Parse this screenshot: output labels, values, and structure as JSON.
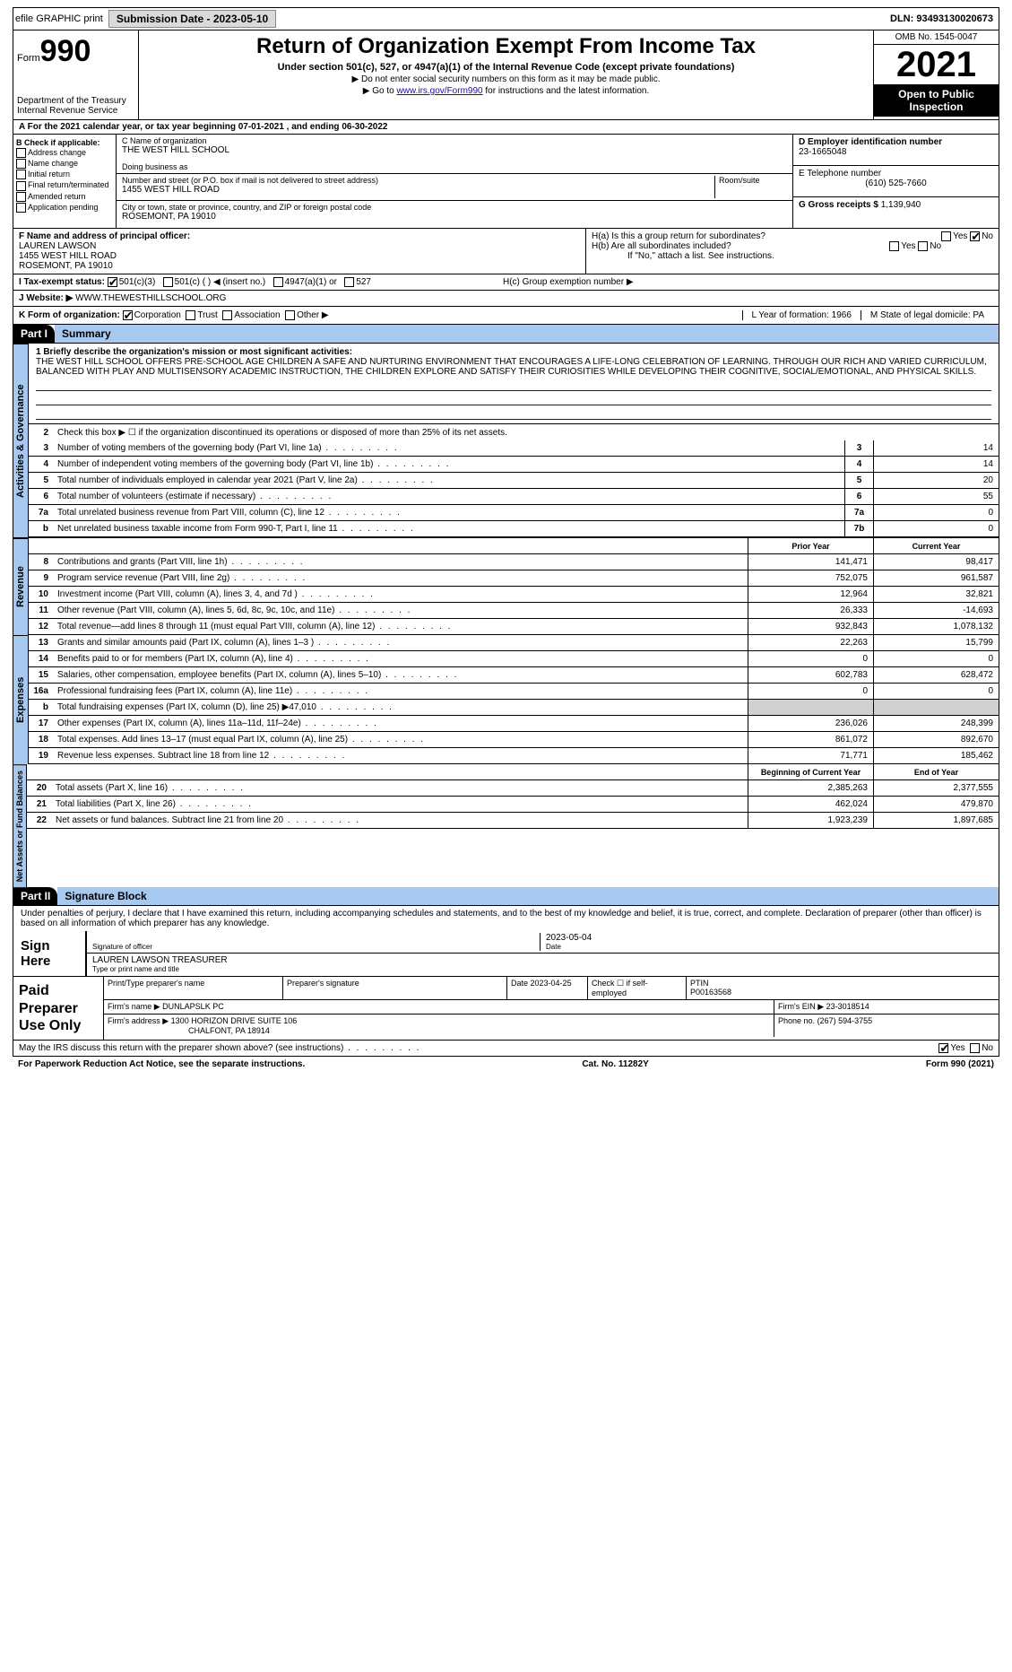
{
  "top": {
    "efile": "efile GRAPHIC print",
    "submission": "Submission Date - 2023-05-10",
    "dln": "DLN: 93493130020673"
  },
  "header": {
    "form_prefix": "Form",
    "form_num": "990",
    "dept": "Department of the Treasury Internal Revenue Service",
    "title": "Return of Organization Exempt From Income Tax",
    "subtitle": "Under section 501(c), 527, or 4947(a)(1) of the Internal Revenue Code (except private foundations)",
    "note1": "▶ Do not enter social security numbers on this form as it may be made public.",
    "note2_pre": "▶ Go to ",
    "note2_link": "www.irs.gov/Form990",
    "note2_post": " for instructions and the latest information.",
    "omb": "OMB No. 1545-0047",
    "year": "2021",
    "open": "Open to Public Inspection"
  },
  "rowA": "A For the 2021 calendar year, or tax year beginning 07-01-2021   , and ending 06-30-2022",
  "boxB": {
    "title": "B Check if applicable:",
    "items": [
      "Address change",
      "Name change",
      "Initial return",
      "Final return/terminated",
      "Amended return",
      "Application pending"
    ]
  },
  "boxC": {
    "name_lbl": "C Name of organization",
    "name": "THE WEST HILL SCHOOL",
    "dba_lbl": "Doing business as",
    "addr_lbl": "Number and street (or P.O. box if mail is not delivered to street address)",
    "addr": "1455 WEST HILL ROAD",
    "room_lbl": "Room/suite",
    "city_lbl": "City or town, state or province, country, and ZIP or foreign postal code",
    "city": "ROSEMONT, PA  19010"
  },
  "boxD": {
    "lbl": "D Employer identification number",
    "val": "23-1665048"
  },
  "boxE": {
    "lbl": "E Telephone number",
    "val": "(610) 525-7660"
  },
  "boxG": {
    "lbl": "G Gross receipts $",
    "val": "1,139,940"
  },
  "boxF": {
    "lbl": "F Name and address of principal officer:",
    "name": "LAUREN LAWSON",
    "addr1": "1455 WEST HILL ROAD",
    "addr2": "ROSEMONT, PA  19010"
  },
  "boxH": {
    "a": "H(a)  Is this a group return for subordinates?",
    "b": "H(b)  Are all subordinates included?",
    "b_note": "If \"No,\" attach a list. See instructions.",
    "c": "H(c)  Group exemption number ▶"
  },
  "boxI": {
    "lbl": "I  Tax-exempt status:",
    "opts": [
      "501(c)(3)",
      "501(c) (  ) ◀ (insert no.)",
      "4947(a)(1) or",
      "527"
    ]
  },
  "boxJ": {
    "lbl": "J  Website: ▶",
    "val": "WWW.THEWESTHILLSCHOOL.ORG"
  },
  "boxK": {
    "lbl": "K Form of organization:",
    "opts": [
      "Corporation",
      "Trust",
      "Association",
      "Other ▶"
    ],
    "L": "L Year of formation: 1966",
    "M": "M State of legal domicile: PA"
  },
  "part1": {
    "hdr": "Part I",
    "title": "Summary",
    "mission_lbl": "1  Briefly describe the organization's mission or most significant activities:",
    "mission": "THE WEST HILL SCHOOL OFFERS PRE-SCHOOL AGE CHILDREN A SAFE AND NURTURING ENVIRONMENT THAT ENCOURAGES A LIFE-LONG CELEBRATION OF LEARNING. THROUGH OUR RICH AND VARIED CURRICULUM, BALANCED WITH PLAY AND MULTISENSORY ACADEMIC INSTRUCTION, THE CHILDREN EXPLORE AND SATISFY THEIR CURIOSITIES WHILE DEVELOPING THEIR COGNITIVE, SOCIAL/EMOTIONAL, AND PHYSICAL SKILLS.",
    "line2": "Check this box ▶ ☐  if the organization discontinued its operations or disposed of more than 25% of its net assets."
  },
  "gov_lines": [
    {
      "n": "3",
      "d": "Number of voting members of the governing body (Part VI, line 1a)",
      "b": "3",
      "v": "14"
    },
    {
      "n": "4",
      "d": "Number of independent voting members of the governing body (Part VI, line 1b)",
      "b": "4",
      "v": "14"
    },
    {
      "n": "5",
      "d": "Total number of individuals employed in calendar year 2021 (Part V, line 2a)",
      "b": "5",
      "v": "20"
    },
    {
      "n": "6",
      "d": "Total number of volunteers (estimate if necessary)",
      "b": "6",
      "v": "55"
    },
    {
      "n": "7a",
      "d": "Total unrelated business revenue from Part VIII, column (C), line 12",
      "b": "7a",
      "v": "0"
    },
    {
      "n": "b",
      "d": "Net unrelated business taxable income from Form 990-T, Part I, line 11",
      "b": "7b",
      "v": "0"
    }
  ],
  "rev_hdr": {
    "py": "Prior Year",
    "cy": "Current Year"
  },
  "rev_lines": [
    {
      "n": "8",
      "d": "Contributions and grants (Part VIII, line 1h)",
      "p": "141,471",
      "c": "98,417"
    },
    {
      "n": "9",
      "d": "Program service revenue (Part VIII, line 2g)",
      "p": "752,075",
      "c": "961,587"
    },
    {
      "n": "10",
      "d": "Investment income (Part VIII, column (A), lines 3, 4, and 7d )",
      "p": "12,964",
      "c": "32,821"
    },
    {
      "n": "11",
      "d": "Other revenue (Part VIII, column (A), lines 5, 6d, 8c, 9c, 10c, and 11e)",
      "p": "26,333",
      "c": "-14,693"
    },
    {
      "n": "12",
      "d": "Total revenue—add lines 8 through 11 (must equal Part VIII, column (A), line 12)",
      "p": "932,843",
      "c": "1,078,132"
    }
  ],
  "exp_lines": [
    {
      "n": "13",
      "d": "Grants and similar amounts paid (Part IX, column (A), lines 1–3 )",
      "p": "22,263",
      "c": "15,799"
    },
    {
      "n": "14",
      "d": "Benefits paid to or for members (Part IX, column (A), line 4)",
      "p": "0",
      "c": "0"
    },
    {
      "n": "15",
      "d": "Salaries, other compensation, employee benefits (Part IX, column (A), lines 5–10)",
      "p": "602,783",
      "c": "628,472"
    },
    {
      "n": "16a",
      "d": "Professional fundraising fees (Part IX, column (A), line 11e)",
      "p": "0",
      "c": "0"
    },
    {
      "n": "b",
      "d": "Total fundraising expenses (Part IX, column (D), line 25) ▶47,010",
      "p": "",
      "c": "",
      "shade": true
    },
    {
      "n": "17",
      "d": "Other expenses (Part IX, column (A), lines 11a–11d, 11f–24e)",
      "p": "236,026",
      "c": "248,399"
    },
    {
      "n": "18",
      "d": "Total expenses. Add lines 13–17 (must equal Part IX, column (A), line 25)",
      "p": "861,072",
      "c": "892,670"
    },
    {
      "n": "19",
      "d": "Revenue less expenses. Subtract line 18 from line 12",
      "p": "71,771",
      "c": "185,462"
    }
  ],
  "na_hdr": {
    "py": "Beginning of Current Year",
    "cy": "End of Year"
  },
  "na_lines": [
    {
      "n": "20",
      "d": "Total assets (Part X, line 16)",
      "p": "2,385,263",
      "c": "2,377,555"
    },
    {
      "n": "21",
      "d": "Total liabilities (Part X, line 26)",
      "p": "462,024",
      "c": "479,870"
    },
    {
      "n": "22",
      "d": "Net assets or fund balances. Subtract line 21 from line 20",
      "p": "1,923,239",
      "c": "1,897,685"
    }
  ],
  "tabs": {
    "gov": "Activities & Governance",
    "rev": "Revenue",
    "exp": "Expenses",
    "na": "Net Assets or Fund Balances"
  },
  "part2": {
    "hdr": "Part II",
    "title": "Signature Block",
    "decl": "Under penalties of perjury, I declare that I have examined this return, including accompanying schedules and statements, and to the best of my knowledge and belief, it is true, correct, and complete. Declaration of preparer (other than officer) is based on all information of which preparer has any knowledge.",
    "sign_here": "Sign Here",
    "sig_lbl": "Signature of officer",
    "date": "2023-05-04",
    "date_lbl": "Date",
    "name": "LAUREN LAWSON  TREASURER",
    "name_lbl": "Type or print name and title"
  },
  "prep": {
    "title": "Paid Preparer Use Only",
    "h1": "Print/Type preparer's name",
    "h2": "Preparer's signature",
    "h3": "Date",
    "date": "2023-04-25",
    "h4": "Check ☐ if self-employed",
    "h5": "PTIN",
    "ptin": "P00163568",
    "firm_lbl": "Firm's name    ▶",
    "firm": "DUNLAPSLK PC",
    "ein_lbl": "Firm's EIN ▶",
    "ein": "23-3018514",
    "addr_lbl": "Firm's address ▶",
    "addr1": "1300 HORIZON DRIVE SUITE 106",
    "addr2": "CHALFONT, PA  18914",
    "phone_lbl": "Phone no.",
    "phone": "(267) 594-3755"
  },
  "footer": {
    "discuss": "May the IRS discuss this return with the preparer shown above? (see instructions)",
    "pra": "For Paperwork Reduction Act Notice, see the separate instructions.",
    "cat": "Cat. No. 11282Y",
    "form": "Form 990 (2021)"
  }
}
